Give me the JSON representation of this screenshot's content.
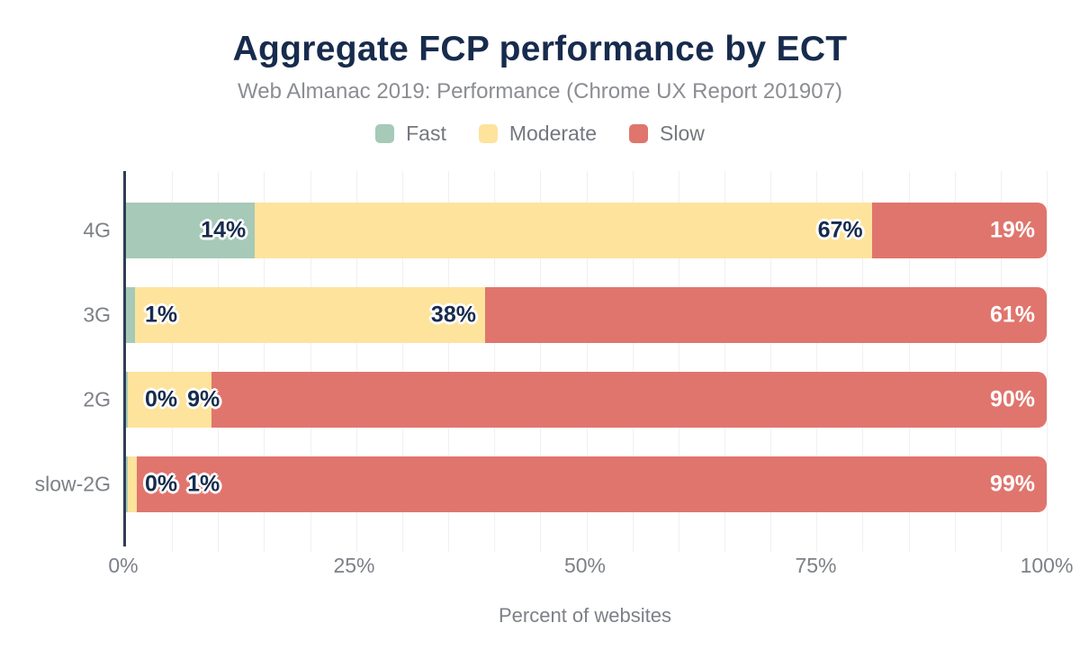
{
  "chart_data": {
    "type": "bar",
    "stacked": true,
    "orientation": "horizontal",
    "title": "Aggregate FCP performance by ECT",
    "subtitle": "Web Almanac 2019: Performance (Chrome UX Report 201907)",
    "xlabel": "Percent of websites",
    "categories": [
      "4G",
      "3G",
      "2G",
      "slow-2G"
    ],
    "series": [
      {
        "name": "Fast",
        "color": "#a6c9b8",
        "values": [
          14,
          1,
          0,
          0
        ]
      },
      {
        "name": "Moderate",
        "color": "#fde39c",
        "values": [
          67,
          38,
          9,
          1
        ]
      },
      {
        "name": "Slow",
        "color": "#e0756d",
        "values": [
          19,
          61,
          90,
          99
        ]
      }
    ],
    "value_labels": [
      [
        "14%",
        "67%",
        "19%"
      ],
      [
        "1%",
        "38%",
        "61%"
      ],
      [
        "0%",
        "9%",
        "90%"
      ],
      [
        "0%",
        "1%",
        "99%"
      ]
    ],
    "x_ticks": [
      "0%",
      "25%",
      "50%",
      "75%",
      "100%"
    ],
    "xlim": [
      0,
      100
    ],
    "grid_step": 5,
    "grid": true,
    "legend_position": "top"
  },
  "colors": {
    "title": "#172b4d",
    "subtitle": "#8b8d92",
    "axis_text": "#7d8087",
    "legend_text": "#74777e",
    "bar_label": "#172b4d",
    "bar_label_on_slow": "#ffffff",
    "axis_line": "#2f3d54",
    "gridline": "#f0f0f2"
  }
}
